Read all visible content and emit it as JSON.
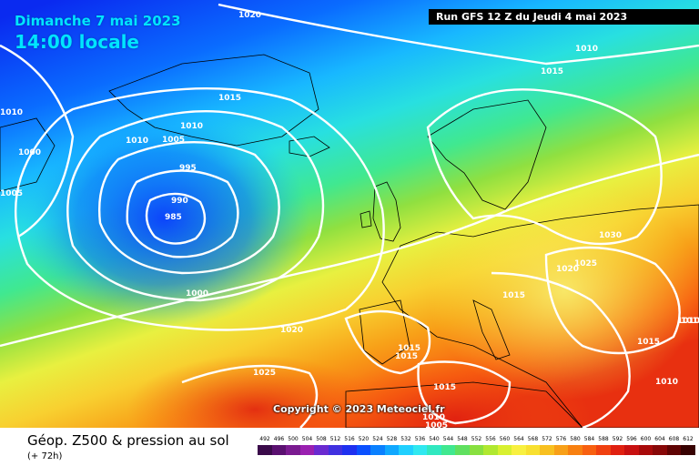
{
  "header": {
    "date": "Dimanche 7 mai 2023",
    "local_time": "14:00 locale",
    "run": "Run GFS 12 Z du Jeudi 4 mai 2023"
  },
  "map": {
    "isobars": [
      {
        "label": "1020",
        "color": "#ffffff"
      },
      {
        "label": "1010",
        "color": "#ffffff"
      },
      {
        "label": "1015",
        "color": "#ffffff"
      },
      {
        "label": "1015",
        "color": "#ffffff"
      },
      {
        "label": "1010",
        "color": "#ffffff"
      },
      {
        "label": "1010",
        "color": "#ffffff"
      },
      {
        "label": "1005",
        "color": "#ffffff"
      },
      {
        "label": "1000",
        "color": "#ffffff"
      },
      {
        "label": "1005",
        "color": "#ffffff"
      },
      {
        "label": "995",
        "color": "#ffffff"
      },
      {
        "label": "990",
        "color": "#ffffff"
      },
      {
        "label": "985",
        "color": "#ffffff"
      },
      {
        "label": "1000",
        "color": "#ffffff"
      },
      {
        "label": "1020",
        "color": "#ffffff"
      },
      {
        "label": "1025",
        "color": "#ffffff"
      },
      {
        "label": "1030",
        "color": "#ffffff"
      },
      {
        "label": "1020",
        "color": "#ffffff"
      },
      {
        "label": "1025",
        "color": "#ffffff"
      },
      {
        "label": "1015",
        "color": "#ffffff"
      },
      {
        "label": "1015",
        "color": "#ffffff"
      },
      {
        "label": "1015",
        "color": "#ffffff"
      },
      {
        "label": "1015",
        "color": "#ffffff"
      },
      {
        "label": "1010",
        "color": "#ffffff"
      },
      {
        "label": "1005",
        "color": "#ffffff"
      },
      {
        "label": "1005",
        "color": "#ffffff"
      },
      {
        "label": "1010",
        "color": "#ffffff"
      },
      {
        "label": "1010",
        "color": "#ffffff"
      },
      {
        "label": "1015",
        "color": "#ffffff"
      },
      {
        "label": "1010",
        "color": "#ffffff"
      },
      {
        "label": "1015",
        "color": "#ffffff"
      }
    ],
    "low_center_hpa": 985
  },
  "copyright": "Copyright © 2023 Meteociel.fr",
  "footer": {
    "product": "Géop. Z500 & pression au sol",
    "lead": "(+ 72h)"
  },
  "scale": {
    "labels": [
      "492",
      "496",
      "500",
      "504",
      "508",
      "512",
      "516",
      "520",
      "524",
      "528",
      "532",
      "536",
      "540",
      "544",
      "548",
      "552",
      "556",
      "560",
      "564",
      "568",
      "572",
      "576",
      "580",
      "584",
      "588",
      "592",
      "596",
      "600",
      "604",
      "608",
      "612"
    ],
    "colors": [
      "#3a0a4a",
      "#5a1070",
      "#7a1a90",
      "#9a20b0",
      "#6a2ad0",
      "#4030e0",
      "#1e30f0",
      "#0a50ff",
      "#0a80ff",
      "#10a8ff",
      "#20d0ff",
      "#30e8f0",
      "#30e8c0",
      "#40e890",
      "#60e060",
      "#88e040",
      "#b0e830",
      "#d8f030",
      "#f8f040",
      "#f8e030",
      "#f8c020",
      "#f8a018",
      "#f88010",
      "#f86010",
      "#f04010",
      "#e02010",
      "#c81010",
      "#a80a0a",
      "#880808",
      "#600404",
      "#380202"
    ]
  }
}
